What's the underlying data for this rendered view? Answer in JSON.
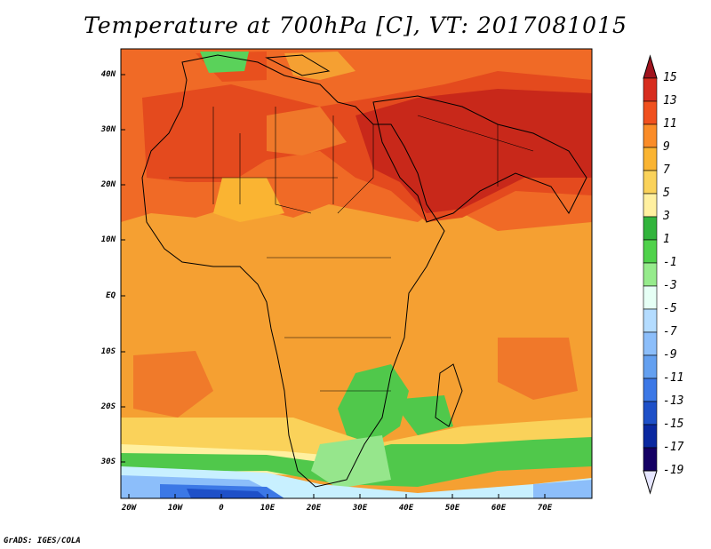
{
  "title": "Temperature at 700hPa [C], VT: 2017081015",
  "footer": "GrADS: IGES/COLA",
  "axes": {
    "lat_labels": [
      "40N",
      "30N",
      "20N",
      "10N",
      "EQ",
      "10S",
      "20S",
      "30S"
    ],
    "lon_labels": [
      "20W",
      "10W",
      "0",
      "10E",
      "20E",
      "30E",
      "40E",
      "50E",
      "60E",
      "70E"
    ]
  },
  "colorbar": {
    "labels": [
      "15",
      "13",
      "11",
      "9",
      "7",
      "5",
      "3",
      "1",
      "-1",
      "-3",
      "-5",
      "-7",
      "-9",
      "-11",
      "-13",
      "-15",
      "-17",
      "-19"
    ],
    "colors": [
      "#a0141e",
      "#d72d1e",
      "#f0501e",
      "#fa8c28",
      "#fab432",
      "#fad25a",
      "#fff0a0",
      "#32b43c",
      "#50d24b",
      "#96eb8c",
      "#e6fff5",
      "#b4dcff",
      "#8cbefa",
      "#64a0f0",
      "#3c78e6",
      "#1e50c8",
      "#0a28a0",
      "#140064",
      "#e6e6ff"
    ]
  },
  "colors": {
    "map_background": "#f5a436",
    "land_border": "#000000"
  }
}
